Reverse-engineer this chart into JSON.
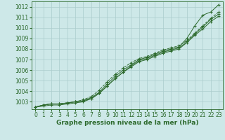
{
  "x": [
    0,
    1,
    2,
    3,
    4,
    5,
    6,
    7,
    8,
    9,
    10,
    11,
    12,
    13,
    14,
    15,
    16,
    17,
    18,
    19,
    20,
    21,
    22,
    23
  ],
  "series": [
    [
      1002.5,
      1002.7,
      1002.8,
      1002.8,
      1002.9,
      1003.0,
      1003.1,
      1003.4,
      1003.9,
      1004.7,
      1005.4,
      1006.0,
      1006.5,
      1007.0,
      1007.2,
      1007.5,
      1007.8,
      1008.0,
      1008.2,
      1009.0,
      1010.2,
      1011.2,
      1011.5,
      1012.2
    ],
    [
      1002.5,
      1002.7,
      1002.8,
      1002.8,
      1002.9,
      1003.0,
      1003.1,
      1003.3,
      1003.8,
      1004.5,
      1005.2,
      1005.8,
      1006.4,
      1006.9,
      1007.1,
      1007.4,
      1007.7,
      1007.9,
      1008.1,
      1008.7,
      1009.4,
      1010.1,
      1010.8,
      1011.3
    ],
    [
      1002.5,
      1002.7,
      1002.8,
      1002.8,
      1002.9,
      1003.0,
      1003.2,
      1003.5,
      1004.1,
      1004.9,
      1005.6,
      1006.2,
      1006.7,
      1007.1,
      1007.3,
      1007.6,
      1007.9,
      1008.1,
      1008.3,
      1008.8,
      1009.5,
      1010.2,
      1010.9,
      1011.5
    ],
    [
      1002.5,
      1002.6,
      1002.7,
      1002.7,
      1002.8,
      1002.9,
      1003.0,
      1003.3,
      1003.8,
      1004.5,
      1005.2,
      1005.8,
      1006.3,
      1006.8,
      1007.0,
      1007.3,
      1007.6,
      1007.8,
      1008.0,
      1008.6,
      1009.3,
      1009.9,
      1010.6,
      1011.1
    ]
  ],
  "line_colors": [
    "#2d6a2d",
    "#2d6a2d",
    "#2d6a2d",
    "#2d6a2d"
  ],
  "line_styles": [
    "-",
    "-",
    "--",
    "-"
  ],
  "marker": "+",
  "bg_color": "#cde8e8",
  "grid_color": "#aacccc",
  "axis_color": "#2d6a2d",
  "text_color": "#2d6a2d",
  "xlabel": "Graphe pression niveau de la mer (hPa)",
  "ylim": [
    1002.3,
    1012.5
  ],
  "yticks": [
    1003,
    1004,
    1005,
    1006,
    1007,
    1008,
    1009,
    1010,
    1011,
    1012
  ],
  "xlim": [
    -0.5,
    23.5
  ],
  "xticks": [
    0,
    1,
    2,
    3,
    4,
    5,
    6,
    7,
    8,
    9,
    10,
    11,
    12,
    13,
    14,
    15,
    16,
    17,
    18,
    19,
    20,
    21,
    22,
    23
  ],
  "xlabel_fontsize": 6.5,
  "tick_fontsize": 5.5
}
